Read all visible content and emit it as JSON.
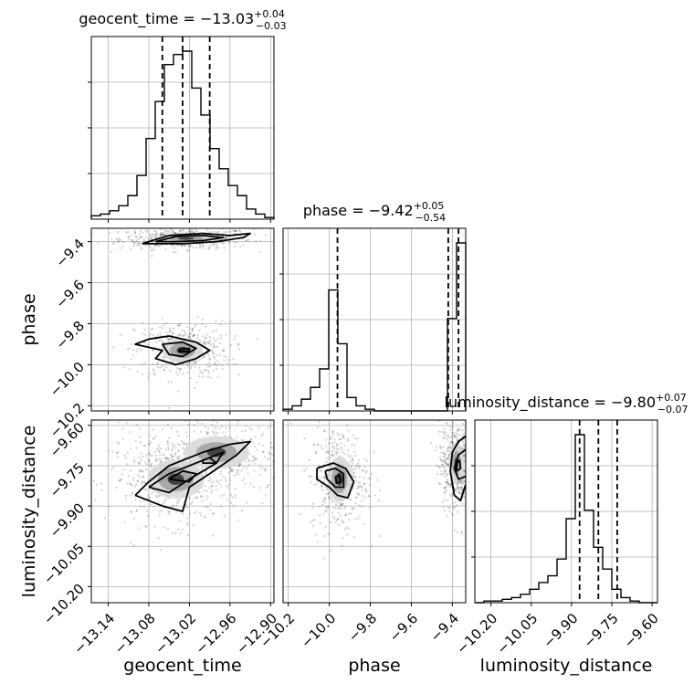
{
  "chart_data": {
    "type": "corner",
    "parameters": [
      "geocent_time",
      "phase",
      "luminosity_distance"
    ],
    "axis_labels": {
      "geocent_time": "geocent_time",
      "phase": "phase",
      "luminosity_distance": "luminosity_distance"
    },
    "ranges": {
      "geocent_time": [
        -13.165,
        -12.895
      ],
      "phase": [
        -10.225,
        -9.335
      ],
      "luminosity_distance": [
        -10.26,
        -9.58
      ]
    },
    "ticks": {
      "geocent_time": [
        -13.14,
        -13.08,
        -13.02,
        -12.96,
        -12.9
      ],
      "phase": [
        -10.2,
        -10.0,
        -9.8,
        -9.6,
        -9.4
      ],
      "luminosity_distance": [
        -10.2,
        -10.05,
        -9.9,
        -9.75,
        -9.6
      ]
    },
    "tick_labels": {
      "geocent_time": [
        "−13.14",
        "−13.08",
        "−13.02",
        "−12.96",
        "−12.90"
      ],
      "phase": [
        "−10.2",
        "−10.0",
        "−9.8",
        "−9.6",
        "−9.4"
      ],
      "luminosity_distance": [
        "−10.20",
        "−10.05",
        "−9.90",
        "−9.75",
        "−9.60"
      ]
    },
    "titles": [
      {
        "param": "geocent_time",
        "prefix": "geocent_time = −13.03",
        "sup": "+0.04",
        "sub": "−0.03"
      },
      {
        "param": "phase",
        "prefix": "phase = −9.42",
        "sup": "+0.05",
        "sub": "−0.54"
      },
      {
        "param": "luminosity_distance",
        "prefix": "luminosity_distance = −9.80",
        "sup": "+0.07",
        "sub": "−0.07"
      }
    ],
    "quantiles": {
      "geocent_time": [
        -13.06,
        -13.03,
        -12.99
      ],
      "phase": [
        -9.96,
        -9.42,
        -9.37
      ],
      "luminosity_distance": [
        -9.87,
        -9.8,
        -9.73
      ]
    },
    "histograms": {
      "geocent_time": [
        0.02,
        0.03,
        0.05,
        0.08,
        0.14,
        0.26,
        0.48,
        0.7,
        0.92,
        0.98,
        1.0,
        0.78,
        0.62,
        0.42,
        0.3,
        0.2,
        0.14,
        0.06,
        0.03,
        0.01
      ],
      "phase": [
        0.01,
        0.03,
        0.07,
        0.14,
        0.25,
        0.72,
        0.4,
        0.08,
        0.03,
        0.01,
        0,
        0,
        0,
        0,
        0,
        0,
        0,
        0,
        0.55,
        1.0
      ],
      "luminosity_distance": [
        0.0,
        0.01,
        0.01,
        0.02,
        0.03,
        0.05,
        0.08,
        0.12,
        0.16,
        0.26,
        0.5,
        1.0,
        0.55,
        0.33,
        0.2,
        0.08,
        0.03,
        0.01,
        0.0,
        0.0
      ]
    },
    "clusters_2d": {
      "geocent_time__phase": [
        {
          "x": -13.025,
          "y": -9.385,
          "sx": 0.035,
          "sy": 0.018,
          "w": 1.0
        },
        {
          "x": -13.03,
          "y": -9.93,
          "sx": 0.025,
          "sy": 0.05,
          "w": 0.8
        }
      ],
      "geocent_time__luminosity_distance": [
        {
          "x": -13.04,
          "y": -9.8,
          "sx": 0.035,
          "sy": 0.06,
          "w": 1.0
        },
        {
          "x": -12.98,
          "y": -9.7,
          "sx": 0.04,
          "sy": 0.05,
          "w": 0.6
        }
      ],
      "phase__luminosity_distance": [
        {
          "x": -9.95,
          "y": -9.8,
          "sx": 0.05,
          "sy": 0.07,
          "w": 0.8
        },
        {
          "x": -9.38,
          "y": -9.74,
          "sx": 0.03,
          "sy": 0.06,
          "w": 1.0
        }
      ]
    },
    "contours_2d": {
      "geocent_time__phase": [
        [
          [
            -13.09,
            -9.41
          ],
          [
            -13.05,
            -9.37
          ],
          [
            -13.0,
            -9.36
          ],
          [
            -12.96,
            -9.37
          ],
          [
            -12.93,
            -9.36
          ],
          [
            -12.94,
            -9.38
          ],
          [
            -12.98,
            -9.4
          ],
          [
            -13.03,
            -9.41
          ],
          [
            -13.09,
            -9.41
          ]
        ],
        [
          [
            -13.07,
            -9.4
          ],
          [
            -13.04,
            -9.375
          ],
          [
            -13.0,
            -9.37
          ],
          [
            -12.97,
            -9.38
          ],
          [
            -13.0,
            -9.395
          ],
          [
            -13.04,
            -9.4
          ],
          [
            -13.07,
            -9.4
          ]
        ],
        [
          [
            -13.08,
            -9.875
          ],
          [
            -13.05,
            -9.86
          ],
          [
            -13.01,
            -9.89
          ],
          [
            -12.99,
            -9.93
          ],
          [
            -13.01,
            -9.97
          ],
          [
            -13.04,
            -10.0
          ],
          [
            -13.07,
            -9.97
          ],
          [
            -13.06,
            -9.93
          ],
          [
            -13.1,
            -9.9
          ],
          [
            -13.08,
            -9.875
          ]
        ],
        [
          [
            -13.06,
            -9.9
          ],
          [
            -13.03,
            -9.89
          ],
          [
            -13.01,
            -9.92
          ],
          [
            -13.03,
            -9.96
          ],
          [
            -13.05,
            -9.95
          ],
          [
            -13.06,
            -9.9
          ]
        ],
        [
          [
            -13.035,
            -9.925
          ],
          [
            -13.02,
            -9.92
          ],
          [
            -13.02,
            -9.935
          ],
          [
            -13.035,
            -9.935
          ],
          [
            -13.035,
            -9.925
          ]
        ]
      ],
      "geocent_time__luminosity_distance": [
        [
          [
            -13.1,
            -9.86
          ],
          [
            -13.08,
            -9.81
          ],
          [
            -13.05,
            -9.75
          ],
          [
            -13.0,
            -9.7
          ],
          [
            -12.96,
            -9.67
          ],
          [
            -12.93,
            -9.66
          ],
          [
            -12.95,
            -9.71
          ],
          [
            -12.99,
            -9.78
          ],
          [
            -13.02,
            -9.83
          ],
          [
            -13.03,
            -9.92
          ],
          [
            -13.06,
            -9.9
          ],
          [
            -13.1,
            -9.86
          ]
        ],
        [
          [
            -13.08,
            -9.83
          ],
          [
            -13.05,
            -9.78
          ],
          [
            -13.0,
            -9.73
          ],
          [
            -12.97,
            -9.7
          ],
          [
            -12.98,
            -9.74
          ],
          [
            -13.02,
            -9.8
          ],
          [
            -13.05,
            -9.85
          ],
          [
            -13.08,
            -9.83
          ]
        ],
        [
          [
            -13.05,
            -9.8
          ],
          [
            -13.03,
            -9.77
          ],
          [
            -13.01,
            -9.78
          ],
          [
            -13.02,
            -9.81
          ],
          [
            -13.05,
            -9.8
          ]
        ],
        [
          [
            -13.0,
            -9.73
          ],
          [
            -12.99,
            -9.72
          ],
          [
            -12.98,
            -9.74
          ],
          [
            -13.0,
            -9.74
          ],
          [
            -13.0,
            -9.73
          ]
        ]
      ],
      "phase__luminosity_distance": [
        [
          [
            -10.06,
            -9.76
          ],
          [
            -9.98,
            -9.74
          ],
          [
            -9.92,
            -9.76
          ],
          [
            -9.88,
            -9.81
          ],
          [
            -9.91,
            -9.87
          ],
          [
            -9.96,
            -9.86
          ],
          [
            -10.0,
            -9.83
          ],
          [
            -10.06,
            -9.8
          ],
          [
            -10.06,
            -9.76
          ]
        ],
        [
          [
            -10.02,
            -9.77
          ],
          [
            -9.97,
            -9.76
          ],
          [
            -9.93,
            -9.78
          ],
          [
            -9.93,
            -9.83
          ],
          [
            -9.97,
            -9.83
          ],
          [
            -10.01,
            -9.8
          ],
          [
            -10.02,
            -9.77
          ]
        ],
        [
          [
            -9.97,
            -9.79
          ],
          [
            -9.95,
            -9.785
          ],
          [
            -9.945,
            -9.81
          ],
          [
            -9.965,
            -9.815
          ],
          [
            -9.97,
            -9.79
          ]
        ],
        [
          [
            -9.335,
            -9.64
          ],
          [
            -9.37,
            -9.66
          ],
          [
            -9.4,
            -9.7
          ],
          [
            -9.41,
            -9.77
          ],
          [
            -9.39,
            -9.86
          ],
          [
            -9.36,
            -9.88
          ],
          [
            -9.335,
            -9.82
          ]
        ],
        [
          [
            -9.335,
            -9.69
          ],
          [
            -9.37,
            -9.71
          ],
          [
            -9.39,
            -9.76
          ],
          [
            -9.37,
            -9.8
          ],
          [
            -9.335,
            -9.79
          ]
        ],
        [
          [
            -9.38,
            -9.74
          ],
          [
            -9.365,
            -9.73
          ],
          [
            -9.36,
            -9.76
          ],
          [
            -9.38,
            -9.77
          ],
          [
            -9.38,
            -9.74
          ]
        ]
      ]
    },
    "grid": true
  }
}
